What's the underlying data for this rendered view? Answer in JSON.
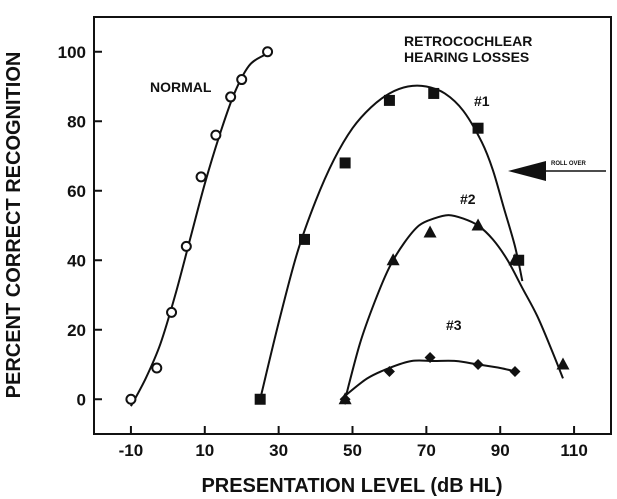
{
  "chart_data": {
    "type": "scatter",
    "title": "",
    "xlabel": "PRESENTATION LEVEL (dB HL)",
    "ylabel": "PERCENT CORRECT RECOGNITION",
    "xlim": [
      -20,
      120
    ],
    "ylim": [
      -10,
      110
    ],
    "xticks": [
      "-10",
      "10",
      "30",
      "50",
      "70",
      "90",
      "110"
    ],
    "yticks": [
      "0",
      "20",
      "40",
      "60",
      "80",
      "100"
    ],
    "grid": false,
    "annotations": {
      "normal": "NORMAL",
      "retro_line1": "RETROCOCHLEAR",
      "retro_line2": "HEARING LOSSES",
      "s1": "#1",
      "s2": "#2",
      "s3": "#3",
      "rollover": "ROLL OVER"
    },
    "series": [
      {
        "name": "NORMAL",
        "marker": "circle-open",
        "points": [
          [
            -10,
            0
          ],
          [
            -3,
            9
          ],
          [
            1,
            25
          ],
          [
            5,
            44
          ],
          [
            9,
            64
          ],
          [
            13,
            76
          ],
          [
            17,
            87
          ],
          [
            20,
            92
          ],
          [
            27,
            100
          ]
        ],
        "curve": [
          [
            -10,
            -2
          ],
          [
            -6,
            6
          ],
          [
            -2,
            16
          ],
          [
            2,
            30
          ],
          [
            6,
            46
          ],
          [
            10,
            62
          ],
          [
            14,
            76
          ],
          [
            18,
            88
          ],
          [
            22,
            96
          ],
          [
            26,
            99
          ],
          [
            28,
            100
          ]
        ]
      },
      {
        "name": "#1",
        "marker": "square",
        "points": [
          [
            25,
            0
          ],
          [
            37,
            46
          ],
          [
            48,
            68
          ],
          [
            60,
            86
          ],
          [
            72,
            88
          ],
          [
            84,
            78
          ],
          [
            95,
            40
          ]
        ],
        "curve": [
          [
            25,
            0
          ],
          [
            30,
            22
          ],
          [
            35,
            42
          ],
          [
            40,
            57
          ],
          [
            45,
            69
          ],
          [
            50,
            78
          ],
          [
            55,
            84
          ],
          [
            60,
            88
          ],
          [
            65,
            90
          ],
          [
            70,
            90
          ],
          [
            75,
            88
          ],
          [
            80,
            83
          ],
          [
            85,
            74
          ],
          [
            88,
            66
          ],
          [
            91,
            55
          ],
          [
            94,
            44
          ],
          [
            96,
            34
          ]
        ]
      },
      {
        "name": "#2",
        "marker": "triangle",
        "points": [
          [
            48,
            0
          ],
          [
            61,
            40
          ],
          [
            71,
            48
          ],
          [
            84,
            50
          ],
          [
            94,
            40
          ],
          [
            107,
            10
          ]
        ],
        "curve": [
          [
            48,
            0
          ],
          [
            52,
            16
          ],
          [
            56,
            28
          ],
          [
            60,
            38
          ],
          [
            64,
            45
          ],
          [
            68,
            50
          ],
          [
            72,
            52
          ],
          [
            76,
            53
          ],
          [
            80,
            52
          ],
          [
            84,
            50
          ],
          [
            88,
            46
          ],
          [
            92,
            40
          ],
          [
            96,
            32
          ],
          [
            100,
            24
          ],
          [
            104,
            14
          ],
          [
            107,
            6
          ]
        ]
      },
      {
        "name": "#3",
        "marker": "diamond",
        "points": [
          [
            48,
            0
          ],
          [
            60,
            8
          ],
          [
            71,
            12
          ],
          [
            84,
            10
          ],
          [
            94,
            8
          ]
        ],
        "curve": [
          [
            48,
            1
          ],
          [
            54,
            6
          ],
          [
            60,
            9
          ],
          [
            66,
            11
          ],
          [
            72,
            11
          ],
          [
            78,
            11
          ],
          [
            84,
            10
          ],
          [
            90,
            9
          ],
          [
            94,
            8
          ]
        ]
      }
    ],
    "rollover_arrow_y": 66
  },
  "colors": {
    "ink": "#111111",
    "background": "#ffffff"
  }
}
